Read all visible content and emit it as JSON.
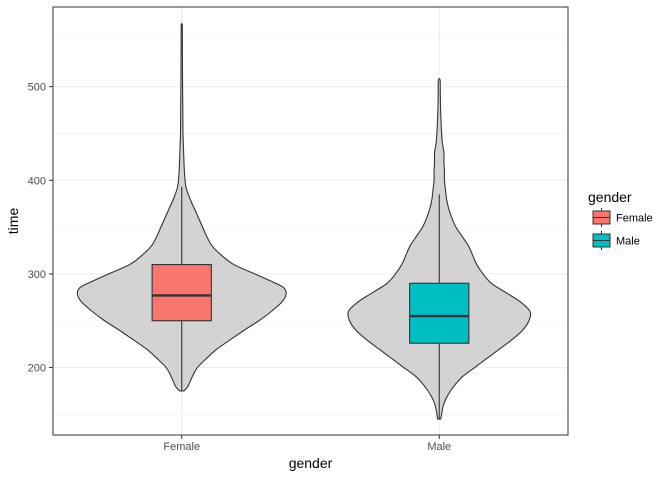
{
  "chart_data": {
    "type": "violin",
    "overlay": "boxplot",
    "title": "",
    "xlabel": "gender",
    "ylabel": "time",
    "categories": [
      "Female",
      "Male"
    ],
    "ylim": [
      128,
      585
    ],
    "yticks": [
      200,
      300,
      400,
      500
    ],
    "grid": true,
    "theme": "bw",
    "violin_fill": "#d3d3d3",
    "outline_color": "#333333",
    "legend": {
      "title": "gender",
      "position": "right",
      "entries": [
        {
          "label": "Female",
          "color": "#f8766d"
        },
        {
          "label": "Male",
          "color": "#00bfc4"
        }
      ]
    },
    "series": [
      {
        "name": "Female",
        "color": "#f8766d",
        "min": 175,
        "q1": 250,
        "median": 277,
        "q3": 310,
        "whisker_low": 175,
        "whisker_high": 393,
        "max": 566,
        "density": [
          [
            175,
            0.02
          ],
          [
            180,
            0.06
          ],
          [
            190,
            0.1
          ],
          [
            200,
            0.15
          ],
          [
            210,
            0.24
          ],
          [
            220,
            0.34
          ],
          [
            230,
            0.47
          ],
          [
            240,
            0.6
          ],
          [
            250,
            0.74
          ],
          [
            260,
            0.86
          ],
          [
            270,
            0.96
          ],
          [
            278,
            1.0
          ],
          [
            285,
            0.98
          ],
          [
            290,
            0.9
          ],
          [
            300,
            0.7
          ],
          [
            310,
            0.5
          ],
          [
            320,
            0.38
          ],
          [
            330,
            0.29
          ],
          [
            340,
            0.24
          ],
          [
            350,
            0.2
          ],
          [
            360,
            0.16
          ],
          [
            370,
            0.12
          ],
          [
            380,
            0.08
          ],
          [
            393,
            0.04
          ],
          [
            410,
            0.025
          ],
          [
            430,
            0.018
          ],
          [
            450,
            0.012
          ],
          [
            480,
            0.01
          ],
          [
            500,
            0.008
          ],
          [
            520,
            0.007
          ],
          [
            540,
            0.006
          ],
          [
            555,
            0.006
          ],
          [
            566,
            0.005
          ]
        ]
      },
      {
        "name": "Male",
        "color": "#00bfc4",
        "min": 145,
        "q1": 226,
        "median": 255,
        "q3": 290,
        "whisker_low": 145,
        "whisker_high": 385,
        "max": 507,
        "density": [
          [
            145,
            0.015
          ],
          [
            160,
            0.04
          ],
          [
            170,
            0.08
          ],
          [
            180,
            0.14
          ],
          [
            190,
            0.22
          ],
          [
            200,
            0.34
          ],
          [
            210,
            0.46
          ],
          [
            220,
            0.58
          ],
          [
            230,
            0.7
          ],
          [
            240,
            0.8
          ],
          [
            250,
            0.86
          ],
          [
            260,
            0.87
          ],
          [
            270,
            0.78
          ],
          [
            280,
            0.64
          ],
          [
            290,
            0.5
          ],
          [
            300,
            0.42
          ],
          [
            310,
            0.36
          ],
          [
            320,
            0.32
          ],
          [
            330,
            0.28
          ],
          [
            340,
            0.22
          ],
          [
            350,
            0.16
          ],
          [
            360,
            0.12
          ],
          [
            370,
            0.09
          ],
          [
            380,
            0.07
          ],
          [
            390,
            0.06
          ],
          [
            400,
            0.05
          ],
          [
            410,
            0.05
          ],
          [
            420,
            0.045
          ],
          [
            430,
            0.045
          ],
          [
            440,
            0.03
          ],
          [
            460,
            0.018
          ],
          [
            480,
            0.012
          ],
          [
            495,
            0.01
          ],
          [
            507,
            0.008
          ]
        ]
      }
    ]
  }
}
